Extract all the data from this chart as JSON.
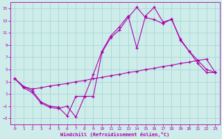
{
  "xlabel": "Windchill (Refroidissement éolien,°C)",
  "bg_color": "#ceecea",
  "grid_color": "#a8d8d4",
  "line_color": "#aa00aa",
  "xlim": [
    -0.5,
    23.5
  ],
  "ylim": [
    -4,
    16
  ],
  "xticks": [
    0,
    1,
    2,
    3,
    4,
    5,
    6,
    7,
    8,
    9,
    10,
    11,
    12,
    13,
    14,
    15,
    16,
    17,
    18,
    19,
    20,
    21,
    22,
    23
  ],
  "yticks": [
    -3,
    -1,
    1,
    3,
    5,
    7,
    9,
    11,
    13,
    15
  ],
  "line1_x": [
    0,
    1,
    2,
    3,
    4,
    5,
    6,
    7,
    8,
    9,
    10,
    11,
    12,
    13,
    14,
    15,
    16,
    17,
    18,
    19,
    20,
    21,
    22,
    23
  ],
  "line1_y": [
    3.5,
    2.2,
    1.8,
    2.0,
    2.3,
    2.5,
    2.7,
    3.0,
    3.2,
    3.5,
    3.7,
    4.0,
    4.2,
    4.5,
    4.7,
    5.0,
    5.2,
    5.5,
    5.7,
    6.0,
    6.2,
    6.5,
    6.7,
    4.5
  ],
  "line2_x": [
    0,
    1,
    2,
    3,
    4,
    5,
    6,
    7,
    8,
    9,
    10,
    11,
    12,
    13,
    14,
    15,
    16,
    17,
    18,
    19,
    20,
    21,
    22,
    23
  ],
  "line2_y": [
    3.5,
    2.0,
    1.2,
    -0.5,
    -1.2,
    -1.4,
    -1.0,
    -2.8,
    0.6,
    0.6,
    7.8,
    10.2,
    11.5,
    13.5,
    15.2,
    13.5,
    13.2,
    12.5,
    13.3,
    9.8,
    8.0,
    6.5,
    5.0,
    4.5
  ],
  "line3_x": [
    0,
    1,
    2,
    3,
    4,
    5,
    6,
    7,
    8,
    9,
    10,
    11,
    12,
    13,
    14,
    15,
    16,
    17,
    18,
    19,
    20,
    21,
    22,
    23
  ],
  "line3_y": [
    3.5,
    2.2,
    1.5,
    -0.3,
    -1.0,
    -1.2,
    -2.6,
    0.6,
    0.6,
    4.2,
    8.0,
    10.5,
    12.0,
    13.8,
    8.5,
    13.8,
    15.2,
    12.8,
    13.2,
    10.0,
    8.0,
    6.0,
    4.5,
    4.5
  ]
}
